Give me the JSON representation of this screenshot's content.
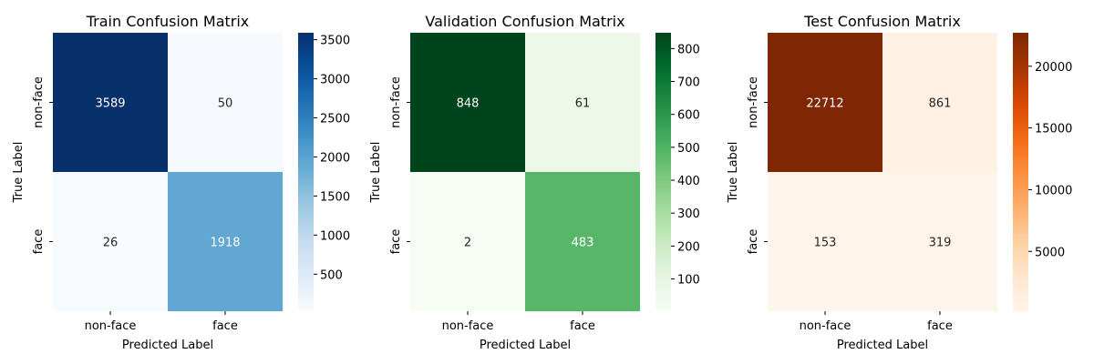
{
  "chart_data": [
    {
      "type": "heatmap",
      "title": "Train Confusion Matrix",
      "xlabel": "Predicted Label",
      "ylabel": "True Label",
      "x_categories": [
        "non-face",
        "face"
      ],
      "y_categories": [
        "non-face",
        "face"
      ],
      "values": [
        [
          3589,
          50
        ],
        [
          26,
          1918
        ]
      ],
      "colormap": "Blues",
      "color_low": "#f7fbff",
      "color_high": "#08306b",
      "colorbar_ticks": [
        500,
        1000,
        1500,
        2000,
        2500,
        3000,
        3500
      ]
    },
    {
      "type": "heatmap",
      "title": "Validation Confusion Matrix",
      "xlabel": "Predicted Label",
      "ylabel": "True Label",
      "x_categories": [
        "non-face",
        "face"
      ],
      "y_categories": [
        "non-face",
        "face"
      ],
      "values": [
        [
          848,
          61
        ],
        [
          2,
          483
        ]
      ],
      "colormap": "Greens",
      "color_low": "#f7fcf5",
      "color_high": "#00441b",
      "colorbar_ticks": [
        100,
        200,
        300,
        400,
        500,
        600,
        700,
        800
      ]
    },
    {
      "type": "heatmap",
      "title": "Test Confusion Matrix",
      "xlabel": "Predicted Label",
      "ylabel": "True Label",
      "x_categories": [
        "non-face",
        "face"
      ],
      "y_categories": [
        "non-face",
        "face"
      ],
      "values": [
        [
          22712,
          861
        ],
        [
          153,
          319
        ]
      ],
      "colormap": "Oranges",
      "color_low": "#fff5eb",
      "color_high": "#7f2704",
      "colorbar_ticks": [
        5000,
        10000,
        15000,
        20000
      ]
    }
  ]
}
